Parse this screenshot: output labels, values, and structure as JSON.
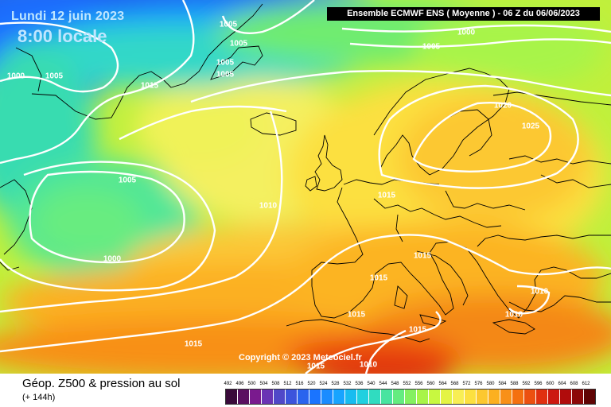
{
  "header": {
    "date_line": "Lundi 12 juin 2023",
    "time_line": "8:00 locale",
    "banner": "Ensemble ECMWF ENS  ( Moyenne )  -  06 Z du 06/06/2023"
  },
  "copyright": "Copyright © 2023 Meteociel.fr",
  "isobar_labels": [
    "1005",
    "1005",
    "1005",
    "1005",
    "1000",
    "1005",
    "1015",
    "1000",
    "1005",
    "1020",
    "1025",
    "1005",
    "1010",
    "1015",
    "1000",
    "1015",
    "1015",
    "1010",
    "1015",
    "1015",
    "1010",
    "1015",
    "1015",
    "1010"
  ],
  "footer": {
    "title": "Géop. Z500 & pression au sol",
    "forecast_hour": "(+ 144h)"
  },
  "legend": {
    "ticks": [
      "492",
      "496",
      "500",
      "504",
      "508",
      "512",
      "516",
      "520",
      "524",
      "528",
      "532",
      "536",
      "540",
      "544",
      "548",
      "552",
      "556",
      "560",
      "564",
      "568",
      "572",
      "576",
      "580",
      "584",
      "588",
      "592",
      "596",
      "600",
      "604",
      "608",
      "612"
    ],
    "colors": [
      "#3a0a3a",
      "#5a1060",
      "#7a1a8e",
      "#6a34b4",
      "#5048c8",
      "#3c54dc",
      "#2a64ee",
      "#1a74ff",
      "#1b8cff",
      "#18a4ff",
      "#18bcf0",
      "#20d0e0",
      "#30dcc0",
      "#48e4a0",
      "#64ec80",
      "#84f060",
      "#a8f448",
      "#c8f840",
      "#e4f444",
      "#f8ee54",
      "#fce040",
      "#fcc830",
      "#fcb020",
      "#f89018",
      "#f47010",
      "#ec5010",
      "#e03010",
      "#cc1810",
      "#b00c0c",
      "#8c0808",
      "#600404"
    ]
  },
  "colors": {
    "isobar": "#ffffff",
    "coastline": "#000000",
    "banner_bg": "#000000"
  }
}
